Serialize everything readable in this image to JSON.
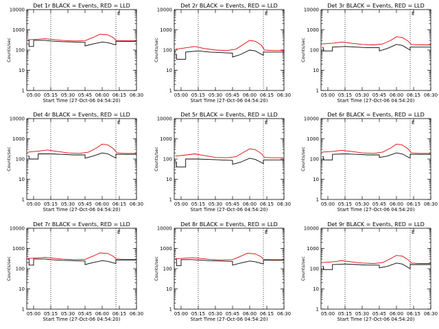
{
  "chart_data": [
    {
      "type": "line",
      "title": "Det 1r BLACK = Events, RED = LLD",
      "xlabel": "Start Time (27-Oct-06 04:54:20)",
      "ylabel": "Counts/sec",
      "x_ticks": [
        "05:00",
        "05:15",
        "05:30",
        "05:45",
        "06:00",
        "06:15",
        "06:30"
      ],
      "y_ticks": [
        "1",
        "10",
        "100",
        "1000",
        "10000"
      ],
      "ylim": [
        1,
        10000
      ],
      "yscale": "log",
      "marker": "E",
      "vlines": [
        "05:15",
        "06:12"
      ],
      "series": [
        {
          "name": "Events",
          "color": "#000000",
          "x": [
            "04:55",
            "04:56",
            "04:56",
            "05:00",
            "05:00",
            "05:10",
            "05:15",
            "05:25",
            "05:35",
            "05:45",
            "05:45",
            "05:52",
            "06:00",
            "06:05",
            "06:12",
            "06:12",
            "06:20",
            "06:30"
          ],
          "values": [
            300,
            300,
            150,
            150,
            300,
            300,
            280,
            260,
            250,
            240,
            160,
            200,
            250,
            230,
            180,
            270,
            270,
            270
          ]
        },
        {
          "name": "LLD",
          "color": "#e00000",
          "x": [
            "04:55",
            "05:00",
            "05:10",
            "05:15",
            "05:25",
            "05:35",
            "05:45",
            "05:52",
            "05:58",
            "06:05",
            "06:10",
            "06:12",
            "06:20",
            "06:30"
          ],
          "values": [
            320,
            330,
            360,
            340,
            300,
            280,
            290,
            420,
            600,
            560,
            400,
            300,
            290,
            290
          ]
        }
      ]
    },
    {
      "type": "line",
      "title": "Det 2r BLACK = Events, RED = LLD",
      "xlabel": "Start Time (27-Oct-06 04:54:20)",
      "ylabel": "Counts/sec",
      "x_ticks": [
        "05:00",
        "05:15",
        "05:30",
        "05:45",
        "06:00",
        "06:15",
        "06:30"
      ],
      "y_ticks": [
        "1",
        "10",
        "100",
        "1000",
        "10000"
      ],
      "ylim": [
        1,
        10000
      ],
      "yscale": "log",
      "marker": "E",
      "vlines": [
        "05:15",
        "06:12"
      ],
      "series": [
        {
          "name": "Events",
          "color": "#000000",
          "x": [
            "04:55",
            "04:56",
            "04:56",
            "05:04",
            "05:04",
            "05:15",
            "05:25",
            "05:35",
            "05:45",
            "05:45",
            "05:52",
            "06:00",
            "06:05",
            "06:12",
            "06:12",
            "06:20",
            "06:30"
          ],
          "values": [
            60,
            60,
            35,
            35,
            80,
            90,
            80,
            75,
            70,
            45,
            60,
            100,
            90,
            55,
            80,
            80,
            80
          ]
        },
        {
          "name": "LLD",
          "color": "#e00000",
          "x": [
            "04:55",
            "05:05",
            "05:12",
            "05:20",
            "05:30",
            "05:40",
            "05:48",
            "05:55",
            "06:00",
            "06:05",
            "06:10",
            "06:13",
            "06:20",
            "06:30"
          ],
          "values": [
            110,
            130,
            150,
            120,
            100,
            95,
            110,
            200,
            300,
            270,
            180,
            100,
            95,
            95
          ]
        }
      ]
    },
    {
      "type": "line",
      "title": "Det 3r BLACK = Events, RED = LLD",
      "xlabel": "Start Time (27-Oct-06 04:54:20)",
      "ylabel": "Counts/sec",
      "x_ticks": [
        "05:00",
        "05:15",
        "05:30",
        "05:45",
        "06:00",
        "06:15",
        "06:30"
      ],
      "y_ticks": [
        "1",
        "10",
        "100",
        "1000",
        "10000"
      ],
      "ylim": [
        1,
        10000
      ],
      "yscale": "log",
      "marker": "E",
      "vlines": [
        "05:15",
        "06:12"
      ],
      "series": [
        {
          "name": "Events",
          "color": "#000000",
          "x": [
            "04:55",
            "04:56",
            "04:56",
            "05:04",
            "05:04",
            "05:15",
            "05:25",
            "05:35",
            "05:45",
            "05:45",
            "05:52",
            "06:00",
            "06:05",
            "06:12",
            "06:12",
            "06:20",
            "06:30"
          ],
          "values": [
            130,
            130,
            90,
            90,
            140,
            150,
            140,
            130,
            130,
            90,
            120,
            190,
            170,
            100,
            140,
            140,
            140
          ]
        },
        {
          "name": "LLD",
          "color": "#e00000",
          "x": [
            "04:55",
            "05:05",
            "05:12",
            "05:20",
            "05:30",
            "05:40",
            "05:48",
            "05:55",
            "06:00",
            "06:05",
            "06:10",
            "06:13",
            "06:20",
            "06:30"
          ],
          "values": [
            200,
            220,
            250,
            220,
            190,
            180,
            200,
            300,
            450,
            420,
            280,
            190,
            180,
            180
          ]
        }
      ]
    },
    {
      "type": "line",
      "title": "Det 4r BLACK = Events, RED = LLD",
      "xlabel": "Start Time (27-Oct-06 04:54:20)",
      "ylabel": "Counts/sec",
      "x_ticks": [
        "05:00",
        "05:15",
        "05:30",
        "05:45",
        "06:00",
        "06:15",
        "06:30"
      ],
      "y_ticks": [
        "1",
        "10",
        "100",
        "1000",
        "10000"
      ],
      "ylim": [
        1,
        10000
      ],
      "yscale": "log",
      "marker": "E",
      "vlines": [
        "05:15",
        "06:12"
      ],
      "series": [
        {
          "name": "Events",
          "color": "#000000",
          "x": [
            "04:55",
            "04:56",
            "04:56",
            "05:04",
            "05:04",
            "05:15",
            "05:25",
            "05:35",
            "05:45",
            "05:45",
            "05:52",
            "06:00",
            "06:05",
            "06:12",
            "06:12",
            "06:20",
            "06:30"
          ],
          "values": [
            140,
            140,
            100,
            100,
            180,
            180,
            170,
            160,
            160,
            110,
            140,
            200,
            180,
            110,
            170,
            170,
            170
          ]
        },
        {
          "name": "LLD",
          "color": "#e00000",
          "x": [
            "04:55",
            "05:05",
            "05:12",
            "05:20",
            "05:30",
            "05:40",
            "05:48",
            "05:55",
            "06:00",
            "06:05",
            "06:10",
            "06:13",
            "06:20",
            "06:30"
          ],
          "values": [
            220,
            250,
            280,
            240,
            200,
            190,
            220,
            350,
            550,
            500,
            320,
            200,
            190,
            190
          ]
        }
      ]
    },
    {
      "type": "line",
      "title": "Det 5r BLACK = Events, RED = LLD",
      "xlabel": "Start Time (27-Oct-06 04:54:20)",
      "ylabel": "Counts/sec",
      "x_ticks": [
        "05:00",
        "05:15",
        "05:30",
        "05:45",
        "06:00",
        "06:15",
        "06:30"
      ],
      "y_ticks": [
        "1",
        "10",
        "100",
        "1000",
        "10000"
      ],
      "ylim": [
        1,
        10000
      ],
      "yscale": "log",
      "marker": "E",
      "vlines": [
        "05:15",
        "06:12"
      ],
      "series": [
        {
          "name": "Events",
          "color": "#000000",
          "x": [
            "04:55",
            "04:56",
            "04:56",
            "05:04",
            "05:04",
            "05:15",
            "05:25",
            "05:35",
            "05:45",
            "05:45",
            "05:52",
            "06:00",
            "06:05",
            "06:12",
            "06:12",
            "06:20",
            "06:30"
          ],
          "values": [
            70,
            70,
            40,
            40,
            100,
            100,
            95,
            90,
            85,
            55,
            70,
            110,
            95,
            60,
            90,
            90,
            90
          ]
        },
        {
          "name": "LLD",
          "color": "#e00000",
          "x": [
            "04:55",
            "05:05",
            "05:12",
            "05:20",
            "05:30",
            "05:40",
            "05:48",
            "05:55",
            "06:00",
            "06:05",
            "06:10",
            "06:13",
            "06:20",
            "06:30"
          ],
          "values": [
            140,
            160,
            180,
            150,
            120,
            115,
            130,
            220,
            320,
            290,
            190,
            120,
            115,
            115
          ]
        }
      ]
    },
    {
      "type": "line",
      "title": "Det 6r BLACK = Events, RED = LLD",
      "xlabel": "Start Time (27-Oct-06 04:54:20)",
      "ylabel": "Counts/sec",
      "x_ticks": [
        "05:00",
        "05:15",
        "05:30",
        "05:45",
        "06:00",
        "06:15",
        "06:30"
      ],
      "y_ticks": [
        "1",
        "10",
        "100",
        "1000",
        "10000"
      ],
      "ylim": [
        1,
        10000
      ],
      "yscale": "log",
      "marker": "E",
      "vlines": [
        "05:15",
        "06:12"
      ],
      "series": [
        {
          "name": "Events",
          "color": "#000000",
          "x": [
            "04:55",
            "04:56",
            "04:56",
            "05:04",
            "05:04",
            "05:15",
            "05:25",
            "05:35",
            "05:45",
            "05:45",
            "05:52",
            "06:00",
            "06:05",
            "06:12",
            "06:12",
            "06:20",
            "06:30"
          ],
          "values": [
            130,
            130,
            90,
            90,
            170,
            180,
            170,
            160,
            160,
            120,
            140,
            200,
            180,
            110,
            170,
            170,
            170
          ]
        },
        {
          "name": "LLD",
          "color": "#e00000",
          "x": [
            "04:55",
            "05:05",
            "05:12",
            "05:20",
            "05:30",
            "05:40",
            "05:48",
            "05:55",
            "06:00",
            "06:05",
            "06:10",
            "06:13",
            "06:20",
            "06:30"
          ],
          "values": [
            220,
            240,
            270,
            240,
            200,
            190,
            220,
            350,
            550,
            500,
            320,
            200,
            190,
            190
          ]
        }
      ]
    },
    {
      "type": "line",
      "title": "Det 7r BLACK = Events, RED = LLD",
      "xlabel": "Start Time (27-Oct-06 04:54:20)",
      "ylabel": "Counts/sec",
      "x_ticks": [
        "05:00",
        "05:15",
        "05:30",
        "05:45",
        "06:00",
        "06:15",
        "06:30"
      ],
      "y_ticks": [
        "1",
        "10",
        "100",
        "1000",
        "10000"
      ],
      "ylim": [
        1,
        10000
      ],
      "yscale": "log",
      "marker": "E",
      "vlines": [
        "05:15",
        "06:12"
      ],
      "series": [
        {
          "name": "Events",
          "color": "#000000",
          "x": [
            "04:55",
            "04:56",
            "04:56",
            "05:00",
            "05:00",
            "05:10",
            "05:15",
            "05:25",
            "05:35",
            "05:45",
            "05:45",
            "05:52",
            "06:00",
            "06:05",
            "06:12",
            "06:12",
            "06:20",
            "06:30"
          ],
          "values": [
            300,
            300,
            150,
            150,
            300,
            300,
            280,
            260,
            250,
            240,
            160,
            200,
            250,
            230,
            180,
            270,
            270,
            270
          ]
        },
        {
          "name": "LLD",
          "color": "#e00000",
          "x": [
            "04:55",
            "05:00",
            "05:10",
            "05:15",
            "05:25",
            "05:35",
            "05:45",
            "05:52",
            "05:58",
            "06:05",
            "06:10",
            "06:12",
            "06:20",
            "06:30"
          ],
          "values": [
            320,
            330,
            360,
            340,
            300,
            280,
            290,
            420,
            600,
            560,
            400,
            300,
            290,
            290
          ]
        }
      ]
    },
    {
      "type": "line",
      "title": "Det 8r BLACK = Events, RED = LLD",
      "xlabel": "Start Time (27-Oct-06 04:54:20)",
      "ylabel": "Counts/sec",
      "x_ticks": [
        "05:00",
        "05:15",
        "05:30",
        "05:45",
        "06:00",
        "06:15",
        "06:30"
      ],
      "y_ticks": [
        "1",
        "10",
        "100",
        "1000",
        "10000"
      ],
      "ylim": [
        1,
        10000
      ],
      "yscale": "log",
      "marker": "E",
      "vlines": [
        "05:15",
        "06:12"
      ],
      "series": [
        {
          "name": "Events",
          "color": "#000000",
          "x": [
            "04:55",
            "04:56",
            "04:56",
            "05:00",
            "05:00",
            "05:10",
            "05:15",
            "05:25",
            "05:35",
            "05:45",
            "05:45",
            "05:52",
            "06:00",
            "06:05",
            "06:12",
            "06:12",
            "06:20",
            "06:30"
          ],
          "values": [
            280,
            280,
            140,
            140,
            280,
            280,
            270,
            250,
            240,
            230,
            150,
            190,
            240,
            220,
            170,
            260,
            260,
            260
          ]
        },
        {
          "name": "LLD",
          "color": "#e00000",
          "x": [
            "04:55",
            "05:00",
            "05:10",
            "05:15",
            "05:25",
            "05:35",
            "05:45",
            "05:52",
            "05:58",
            "06:05",
            "06:10",
            "06:12",
            "06:20",
            "06:30"
          ],
          "values": [
            310,
            320,
            350,
            330,
            290,
            270,
            280,
            410,
            580,
            540,
            390,
            290,
            280,
            280
          ]
        }
      ]
    },
    {
      "type": "line",
      "title": "Det 9r BLACK = Events, RED = LLD",
      "xlabel": "Start Time (27-Oct-06 04:54:20)",
      "ylabel": "Counts/sec",
      "x_ticks": [
        "05:00",
        "05:15",
        "05:30",
        "05:45",
        "06:00",
        "06:15",
        "06:30"
      ],
      "y_ticks": [
        "1",
        "10",
        "100",
        "1000",
        "10000"
      ],
      "ylim": [
        1,
        10000
      ],
      "yscale": "log",
      "marker": "E",
      "vlines": [
        "05:15",
        "06:12"
      ],
      "series": [
        {
          "name": "Events",
          "color": "#000000",
          "x": [
            "04:55",
            "04:56",
            "04:56",
            "05:04",
            "05:04",
            "05:15",
            "05:25",
            "05:35",
            "05:45",
            "05:45",
            "05:52",
            "06:00",
            "06:05",
            "06:12",
            "06:12",
            "06:20",
            "06:30"
          ],
          "values": [
            130,
            130,
            90,
            90,
            160,
            170,
            160,
            150,
            150,
            110,
            130,
            190,
            170,
            100,
            160,
            160,
            160
          ]
        },
        {
          "name": "LLD",
          "color": "#e00000",
          "x": [
            "04:55",
            "05:05",
            "05:12",
            "05:20",
            "05:30",
            "05:40",
            "05:48",
            "05:55",
            "06:00",
            "06:05",
            "06:10",
            "06:13",
            "06:20",
            "06:30"
          ],
          "values": [
            200,
            220,
            250,
            220,
            190,
            180,
            200,
            320,
            450,
            420,
            280,
            190,
            180,
            180
          ]
        }
      ]
    }
  ]
}
